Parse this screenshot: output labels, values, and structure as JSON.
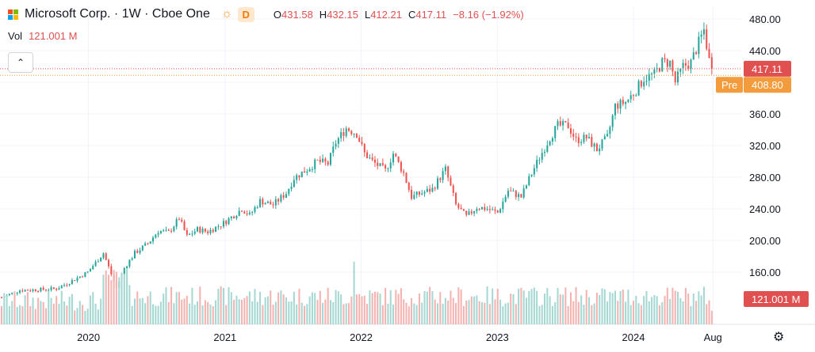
{
  "header": {
    "symbol_title": "Microsoft Corp. · 1W · Cboe One",
    "market_status_icon": "sun-icon",
    "interval_badge": "D",
    "open_label": "O",
    "open": "431.58",
    "high_label": "H",
    "high": "432.15",
    "low_label": "L",
    "low": "412.21",
    "close_label": "C",
    "close": "417.11",
    "change": "−8.16 (−1.92%)",
    "volume_label": "Vol",
    "volume": "121.001 M",
    "collapse_icon": "chevron-up-icon"
  },
  "colors": {
    "up": "#26a69a",
    "down": "#ef5350",
    "up_volume": "#a6d8d3",
    "down_volume": "#f4b3b1",
    "price_label": "#e05050",
    "premarket": "#f39c3d"
  },
  "chart_data": {
    "type": "candlestick",
    "interval": "1W",
    "ylim": [
      120,
      490
    ],
    "y_ticks": [
      160,
      200,
      240,
      280,
      320,
      360,
      400,
      440,
      480
    ],
    "y_tick_labels": [
      "160.00",
      "200.00",
      "240.00",
      "280.00",
      "320.00",
      "360.00",
      "400.00",
      "440.00",
      "480.00"
    ],
    "x_tick_labels": [
      "2020",
      "2021",
      "2022",
      "2023",
      "2024",
      "Aug"
    ],
    "x_tick_dates": [
      "2020-01-01",
      "2021-01-01",
      "2022-01-01",
      "2023-01-01",
      "2024-01-01",
      "2024-08-01"
    ],
    "x_start_date": "2019-05-13",
    "x_end_date": "2024-08-09",
    "last_price": {
      "label": "417.11",
      "value": 417.11
    },
    "premarket": {
      "tag": "Pre",
      "label": "408.80",
      "value": 408.8
    },
    "volume_label": "121.001 M",
    "volume_range_m": [
      0,
      600
    ],
    "close_series_weekly": [
      {
        "date": "2019-05-13",
        "close": 128
      },
      {
        "date": "2019-07-01",
        "close": 137
      },
      {
        "date": "2019-08-26",
        "close": 138
      },
      {
        "date": "2019-10-07",
        "close": 139
      },
      {
        "date": "2019-11-18",
        "close": 149
      },
      {
        "date": "2019-12-30",
        "close": 160
      },
      {
        "date": "2020-02-10",
        "close": 184
      },
      {
        "date": "2020-03-16",
        "close": 140
      },
      {
        "date": "2020-04-06",
        "close": 165
      },
      {
        "date": "2020-05-04",
        "close": 184
      },
      {
        "date": "2020-06-08",
        "close": 196
      },
      {
        "date": "2020-07-06",
        "close": 212
      },
      {
        "date": "2020-08-03",
        "close": 210
      },
      {
        "date": "2020-08-31",
        "close": 228
      },
      {
        "date": "2020-09-21",
        "close": 205
      },
      {
        "date": "2020-10-19",
        "close": 214
      },
      {
        "date": "2020-11-16",
        "close": 211
      },
      {
        "date": "2020-12-28",
        "close": 222
      },
      {
        "date": "2021-01-25",
        "close": 232
      },
      {
        "date": "2021-02-15",
        "close": 240
      },
      {
        "date": "2021-03-08",
        "close": 232
      },
      {
        "date": "2021-04-05",
        "close": 250
      },
      {
        "date": "2021-05-10",
        "close": 245
      },
      {
        "date": "2021-06-14",
        "close": 260
      },
      {
        "date": "2021-07-05",
        "close": 279
      },
      {
        "date": "2021-08-09",
        "close": 290
      },
      {
        "date": "2021-09-06",
        "close": 300
      },
      {
        "date": "2021-10-04",
        "close": 297
      },
      {
        "date": "2021-10-25",
        "close": 324
      },
      {
        "date": "2021-11-22",
        "close": 342
      },
      {
        "date": "2021-12-20",
        "close": 335
      },
      {
        "date": "2022-01-10",
        "close": 310
      },
      {
        "date": "2022-01-31",
        "close": 300
      },
      {
        "date": "2022-03-07",
        "close": 288
      },
      {
        "date": "2022-03-28",
        "close": 310
      },
      {
        "date": "2022-04-25",
        "close": 285
      },
      {
        "date": "2022-05-16",
        "close": 255
      },
      {
        "date": "2022-06-13",
        "close": 260
      },
      {
        "date": "2022-07-11",
        "close": 265
      },
      {
        "date": "2022-08-15",
        "close": 290
      },
      {
        "date": "2022-09-12",
        "close": 245
      },
      {
        "date": "2022-10-10",
        "close": 230
      },
      {
        "date": "2022-11-07",
        "close": 242
      },
      {
        "date": "2022-12-05",
        "close": 240
      },
      {
        "date": "2023-01-02",
        "close": 235
      },
      {
        "date": "2023-01-30",
        "close": 263
      },
      {
        "date": "2023-03-06",
        "close": 255
      },
      {
        "date": "2023-04-03",
        "close": 285
      },
      {
        "date": "2023-04-24",
        "close": 305
      },
      {
        "date": "2023-05-22",
        "close": 330
      },
      {
        "date": "2023-06-12",
        "close": 345
      },
      {
        "date": "2023-07-10",
        "close": 345
      },
      {
        "date": "2023-07-31",
        "close": 327
      },
      {
        "date": "2023-08-28",
        "close": 330
      },
      {
        "date": "2023-09-25",
        "close": 315
      },
      {
        "date": "2023-10-23",
        "close": 330
      },
      {
        "date": "2023-11-13",
        "close": 370
      },
      {
        "date": "2023-12-11",
        "close": 375
      },
      {
        "date": "2024-01-08",
        "close": 390
      },
      {
        "date": "2024-01-29",
        "close": 405
      },
      {
        "date": "2024-02-26",
        "close": 410
      },
      {
        "date": "2024-03-18",
        "close": 425
      },
      {
        "date": "2024-04-08",
        "close": 425
      },
      {
        "date": "2024-04-22",
        "close": 400
      },
      {
        "date": "2024-05-13",
        "close": 420
      },
      {
        "date": "2024-06-03",
        "close": 425
      },
      {
        "date": "2024-06-24",
        "close": 450
      },
      {
        "date": "2024-07-08",
        "close": 466
      },
      {
        "date": "2024-07-22",
        "close": 428
      },
      {
        "date": "2024-07-29",
        "close": 417
      }
    ]
  }
}
